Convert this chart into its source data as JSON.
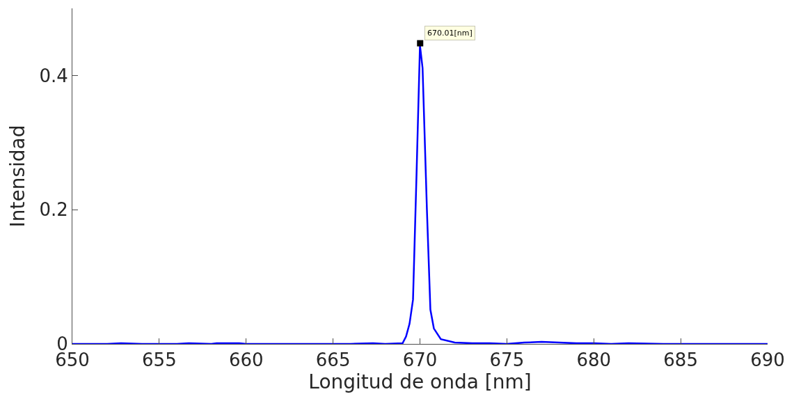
{
  "chart_data": {
    "type": "line",
    "xlabel": "Longitud de onda [nm]",
    "ylabel": "Intensidad",
    "xlim": [
      650,
      690
    ],
    "xticks": [
      650,
      655,
      660,
      665,
      670,
      675,
      680,
      685,
      690
    ],
    "ylim": [
      0,
      0.5
    ],
    "yticks": [
      0,
      0.2,
      0.4
    ],
    "grid": false,
    "series": [
      {
        "color": "#0000ff",
        "x": [
          650,
          652,
          652.8,
          654,
          656,
          656.7,
          658,
          658.3,
          659.6,
          660,
          662,
          664,
          666,
          667.3,
          668,
          669,
          669.2,
          669.4,
          669.6,
          669.8,
          670,
          670.15,
          670.4,
          670.6,
          670.8,
          671.2,
          672,
          673,
          674,
          675,
          676,
          677,
          678,
          679,
          680,
          681,
          682,
          684,
          686,
          688,
          690
        ],
        "values": [
          0,
          0,
          0.001,
          0,
          0,
          0.001,
          0,
          0.001,
          0.001,
          0,
          0,
          0,
          0,
          0.001,
          0,
          0.001,
          0.011,
          0.03,
          0.066,
          0.25,
          0.445,
          0.411,
          0.2,
          0.051,
          0.023,
          0.007,
          0.002,
          0.001,
          0.001,
          0,
          0.002,
          0.003,
          0.002,
          0.001,
          0.001,
          0,
          0.001,
          0,
          0,
          0,
          0
        ]
      },
      {
        "type": "scatter",
        "marker": "square",
        "color": "#000000",
        "x": [
          670.01
        ],
        "values": [
          0.448
        ]
      }
    ],
    "annotations": [
      {
        "text": "670.01[nm]",
        "x": 670.01,
        "y": 0.448
      }
    ]
  }
}
